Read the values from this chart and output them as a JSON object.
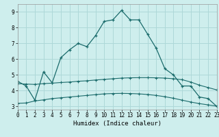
{
  "xlabel": "Humidex (Indice chaleur)",
  "bg_color": "#ceeeed",
  "grid_color": "#aed8d8",
  "line_color": "#1a6b6b",
  "curve1_x": [
    0,
    1,
    2,
    3,
    4,
    5,
    6,
    7,
    8,
    9,
    10,
    11,
    12,
    13,
    14,
    15,
    16,
    17,
    18,
    19,
    20,
    21,
    22,
    23
  ],
  "curve1_y": [
    4.6,
    4.3,
    3.4,
    5.2,
    4.5,
    6.1,
    6.6,
    7.0,
    6.8,
    7.5,
    8.4,
    8.5,
    9.1,
    8.5,
    8.5,
    7.6,
    6.7,
    5.4,
    5.0,
    4.3,
    4.3,
    3.6,
    3.5,
    3.0
  ],
  "curve2_x": [
    0,
    1,
    2,
    3,
    4,
    5,
    6,
    7,
    8,
    9,
    10,
    11,
    12,
    13,
    14,
    15,
    16,
    17,
    18,
    19,
    20,
    21,
    22,
    23
  ],
  "curve2_y": [
    4.45,
    4.42,
    4.4,
    4.45,
    4.48,
    4.52,
    4.55,
    4.6,
    4.63,
    4.68,
    4.72,
    4.76,
    4.8,
    4.82,
    4.83,
    4.83,
    4.82,
    4.8,
    4.76,
    4.7,
    4.55,
    4.35,
    4.2,
    4.05
  ],
  "curve3_x": [
    0,
    1,
    2,
    3,
    4,
    5,
    6,
    7,
    8,
    9,
    10,
    11,
    12,
    13,
    14,
    15,
    16,
    17,
    18,
    19,
    20,
    21,
    22,
    23
  ],
  "curve3_y": [
    3.2,
    3.22,
    3.35,
    3.42,
    3.5,
    3.55,
    3.6,
    3.65,
    3.7,
    3.75,
    3.8,
    3.82,
    3.83,
    3.82,
    3.8,
    3.76,
    3.7,
    3.62,
    3.52,
    3.4,
    3.28,
    3.18,
    3.1,
    3.02
  ],
  "xlim": [
    0,
    23
  ],
  "ylim": [
    2.8,
    9.5
  ],
  "yticks": [
    3,
    4,
    5,
    6,
    7,
    8,
    9
  ],
  "xticks": [
    0,
    1,
    2,
    3,
    4,
    5,
    6,
    7,
    8,
    9,
    10,
    11,
    12,
    13,
    14,
    15,
    16,
    17,
    18,
    19,
    20,
    21,
    22,
    23
  ]
}
